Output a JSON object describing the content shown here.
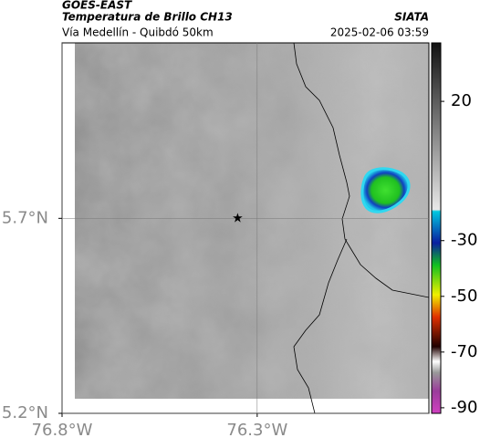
{
  "header": {
    "satellite": "GOES-EAST",
    "product": "Temperatura de Brillo CH13",
    "agency": "SIATA",
    "route": "Vía Medellín - Quibdó 50km",
    "timestamp": "2025-02-06 03:59"
  },
  "map": {
    "lonlim": [
      -76.8,
      -75.86
    ],
    "latlim": [
      5.2,
      6.15
    ],
    "lonticks": [
      {
        "value": -76.8,
        "label": "76.8°W"
      },
      {
        "value": -76.3,
        "label": "76.3°W"
      }
    ],
    "latticks": [
      {
        "value": 5.2,
        "label": "5.2°N"
      },
      {
        "value": 5.7,
        "label": "5.7°N"
      }
    ],
    "grid": true,
    "marker": {
      "lon": -76.35,
      "lat": 5.7
    }
  },
  "colorbar": {
    "lim": [
      -92,
      41
    ],
    "ticks": [
      20,
      -30,
      -50,
      -70,
      -90
    ]
  }
}
